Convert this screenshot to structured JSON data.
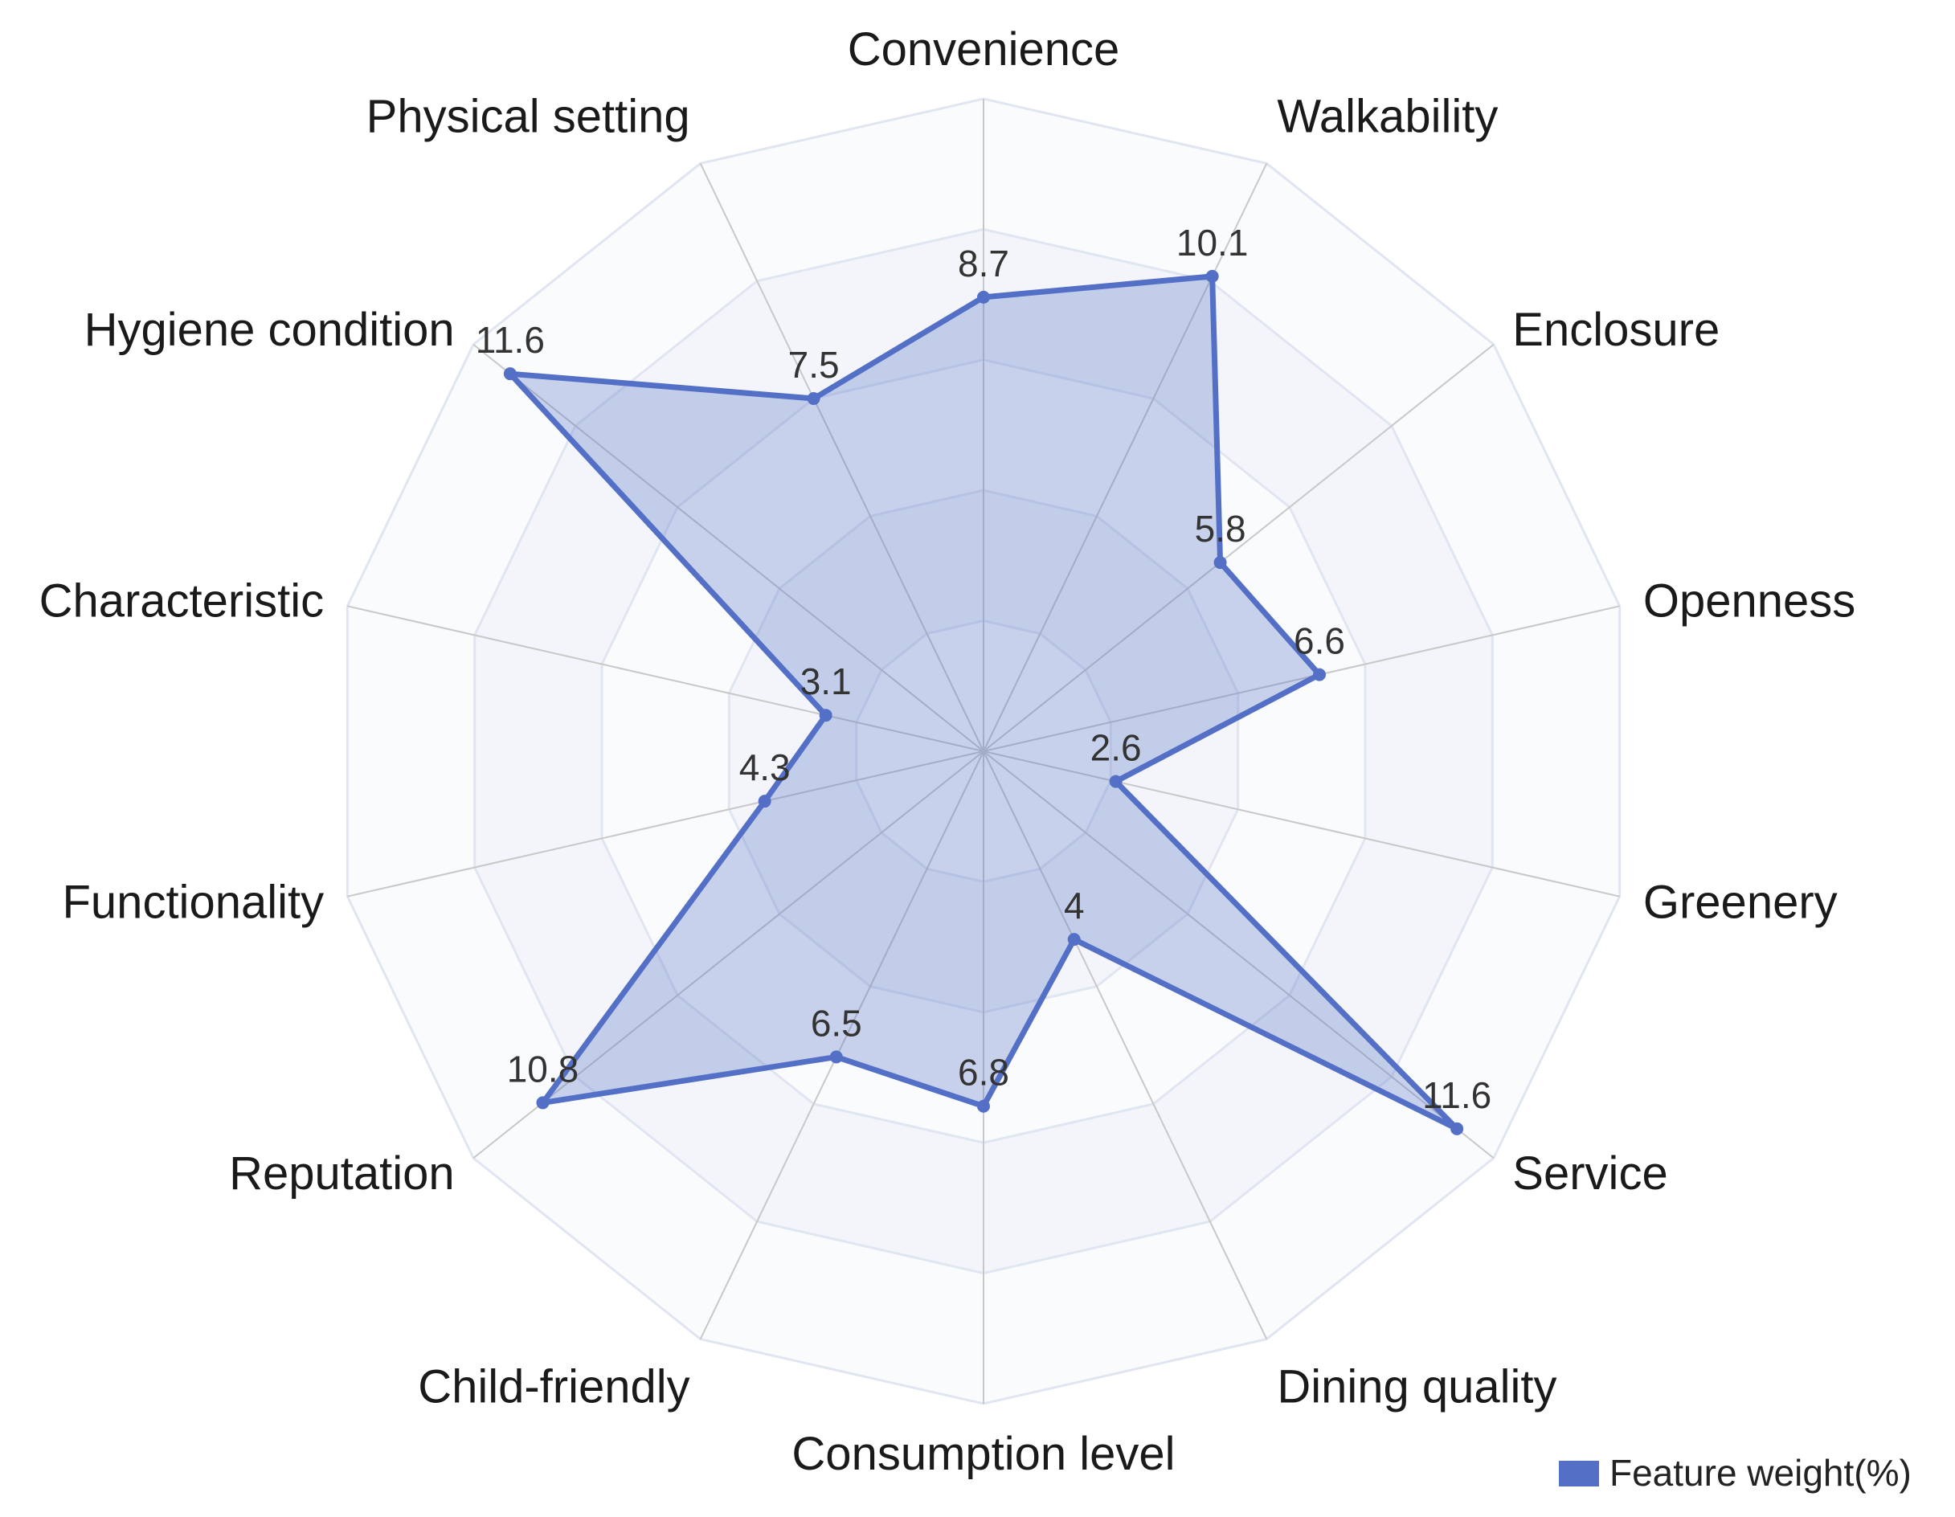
{
  "chart_data": {
    "type": "radar",
    "title": "",
    "categories": [
      "Convenience",
      "Walkability",
      "Enclosure",
      "Openness",
      "Greenery",
      "Service",
      "Dining quality",
      "Consumption level",
      "Child-friendly",
      "Reputation",
      "Functionality",
      "Characteristic",
      "Hygiene condition",
      "Physical setting"
    ],
    "series": [
      {
        "name": "Feature weight(%)",
        "values": [
          8.7,
          10.1,
          5.8,
          6.6,
          2.6,
          11.6,
          4,
          6.8,
          6.5,
          10.8,
          4.3,
          3.1,
          11.6,
          7.5
        ],
        "labels": [
          "8.7",
          "10.1",
          "5.8",
          "6.6",
          "2.6",
          "11.6",
          "4",
          "6.8",
          "6.5",
          "10.8",
          "4.3",
          "3.1",
          "11.6",
          "7.5"
        ]
      }
    ],
    "rlim": [
      0,
      12.5
    ],
    "grid_levels": 5,
    "grid": true,
    "legend_position": "bottom-right",
    "colors": {
      "series": "#5470c6",
      "area": "#5470c6",
      "grid_line": "#e0e6f1",
      "band_a": "#fafbfd",
      "band_b": "#f3f5fa",
      "spoke": "#c8c8c8"
    }
  }
}
